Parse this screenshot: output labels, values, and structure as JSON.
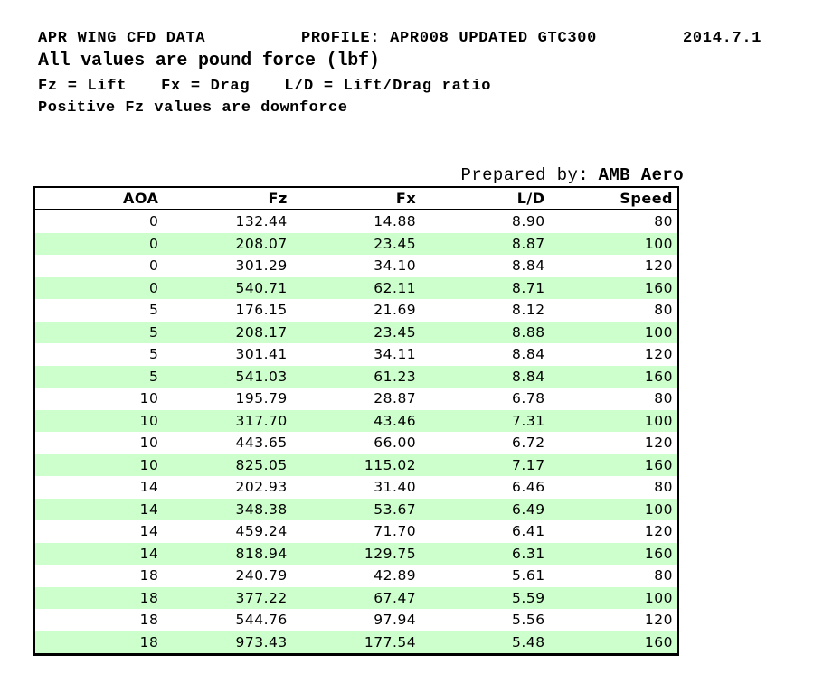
{
  "header": {
    "title": "APR WING CFD DATA",
    "profile": "PROFILE: APR008 UPDATED GTC300",
    "date": "2014.7.1",
    "subtitle": "All values are pound force (lbf)",
    "legend": [
      "Fz = Lift",
      "Fx = Drag",
      "L/D = Lift/Drag ratio"
    ],
    "note": "Positive Fz values are downforce"
  },
  "prepared_by": {
    "label": "Prepared by:",
    "value": "AMB Aero"
  },
  "table": {
    "columns": [
      "AOA",
      "Fz",
      "Fx",
      "L/D",
      "Speed"
    ],
    "rows": [
      [
        "0",
        "132.44",
        "14.88",
        "8.90",
        "80"
      ],
      [
        "0",
        "208.07",
        "23.45",
        "8.87",
        "100"
      ],
      [
        "0",
        "301.29",
        "34.10",
        "8.84",
        "120"
      ],
      [
        "0",
        "540.71",
        "62.11",
        "8.71",
        "160"
      ],
      [
        "5",
        "176.15",
        "21.69",
        "8.12",
        "80"
      ],
      [
        "5",
        "208.17",
        "23.45",
        "8.88",
        "100"
      ],
      [
        "5",
        "301.41",
        "34.11",
        "8.84",
        "120"
      ],
      [
        "5",
        "541.03",
        "61.23",
        "8.84",
        "160"
      ],
      [
        "10",
        "195.79",
        "28.87",
        "6.78",
        "80"
      ],
      [
        "10",
        "317.70",
        "43.46",
        "7.31",
        "100"
      ],
      [
        "10",
        "443.65",
        "66.00",
        "6.72",
        "120"
      ],
      [
        "10",
        "825.05",
        "115.02",
        "7.17",
        "160"
      ],
      [
        "14",
        "202.93",
        "31.40",
        "6.46",
        "80"
      ],
      [
        "14",
        "348.38",
        "53.67",
        "6.49",
        "100"
      ],
      [
        "14",
        "459.24",
        "71.70",
        "6.41",
        "120"
      ],
      [
        "14",
        "818.94",
        "129.75",
        "6.31",
        "160"
      ],
      [
        "18",
        "240.79",
        "42.89",
        "5.61",
        "80"
      ],
      [
        "18",
        "377.22",
        "67.47",
        "5.59",
        "100"
      ],
      [
        "18",
        "544.76",
        "97.94",
        "5.56",
        "120"
      ],
      [
        "18",
        "973.43",
        "177.54",
        "5.48",
        "160"
      ]
    ]
  },
  "colors": {
    "row_alt": "#ccffcc",
    "border": "#000000",
    "text": "#000000",
    "background": "#ffffff"
  },
  "chart_data": {
    "type": "table",
    "title": "APR WING CFD DATA",
    "columns": [
      "AOA",
      "Fz",
      "Fx",
      "L/D",
      "Speed"
    ],
    "units": "lbf",
    "rows": [
      [
        0,
        132.44,
        14.88,
        8.9,
        80
      ],
      [
        0,
        208.07,
        23.45,
        8.87,
        100
      ],
      [
        0,
        301.29,
        34.1,
        8.84,
        120
      ],
      [
        0,
        540.71,
        62.11,
        8.71,
        160
      ],
      [
        5,
        176.15,
        21.69,
        8.12,
        80
      ],
      [
        5,
        208.17,
        23.45,
        8.88,
        100
      ],
      [
        5,
        301.41,
        34.11,
        8.84,
        120
      ],
      [
        5,
        541.03,
        61.23,
        8.84,
        160
      ],
      [
        10,
        195.79,
        28.87,
        6.78,
        80
      ],
      [
        10,
        317.7,
        43.46,
        7.31,
        100
      ],
      [
        10,
        443.65,
        66.0,
        6.72,
        120
      ],
      [
        10,
        825.05,
        115.02,
        7.17,
        160
      ],
      [
        14,
        202.93,
        31.4,
        6.46,
        80
      ],
      [
        14,
        348.38,
        53.67,
        6.49,
        100
      ],
      [
        14,
        459.24,
        71.7,
        6.41,
        120
      ],
      [
        14,
        818.94,
        129.75,
        6.31,
        160
      ],
      [
        18,
        240.79,
        42.89,
        5.61,
        80
      ],
      [
        18,
        377.22,
        67.47,
        5.59,
        100
      ],
      [
        18,
        544.76,
        97.94,
        5.56,
        120
      ],
      [
        18,
        973.43,
        177.54,
        5.48,
        160
      ]
    ]
  }
}
